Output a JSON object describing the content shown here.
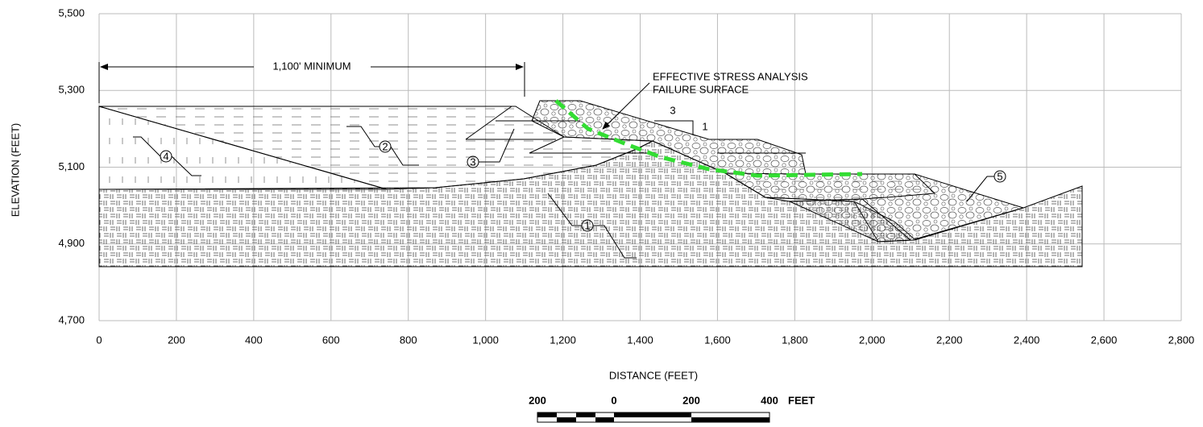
{
  "chart_data": {
    "type": "section",
    "x_label": "DISTANCE (FEET)",
    "y_label": "ELEVATION (FEET)",
    "xlim": [
      0,
      2800
    ],
    "ylim": [
      4700,
      5500
    ],
    "xticks": [
      0,
      200,
      400,
      600,
      800,
      {
        "value": 1000,
        "label": "1,000"
      },
      {
        "value": 1200,
        "label": "1,200"
      },
      {
        "value": 1400,
        "label": "1,400"
      },
      {
        "value": 1600,
        "label": "1,600"
      },
      {
        "value": 1800,
        "label": "1,800"
      },
      {
        "value": 2000,
        "label": "2,000"
      },
      {
        "value": 2200,
        "label": "2,200"
      },
      {
        "value": 2400,
        "label": "2,400"
      },
      {
        "value": 2600,
        "label": "2,600"
      },
      {
        "value": 2800,
        "label": "2,800"
      }
    ],
    "yticks": [
      {
        "value": 4700,
        "label": "4,700"
      },
      {
        "value": 4900,
        "label": "4,900"
      },
      {
        "value": 5100,
        "label": "5,100"
      },
      {
        "value": 5300,
        "label": "5,300"
      },
      {
        "value": 5500,
        "label": "5,500"
      }
    ],
    "grid": true,
    "dimension_label": "1,100' MINIMUM",
    "failure_label": [
      "EFFECTIVE STRESS ANALYSIS",
      "FAILURE SURFACE"
    ],
    "failure_surface_color": "#33dd33",
    "slope": {
      "run": "3",
      "rise": "1"
    },
    "callouts": [
      "1",
      "2",
      "3",
      "4",
      "5"
    ],
    "scale_bar": {
      "labels": [
        "200",
        "0",
        "200",
        "400"
      ],
      "unit": "FEET"
    }
  }
}
